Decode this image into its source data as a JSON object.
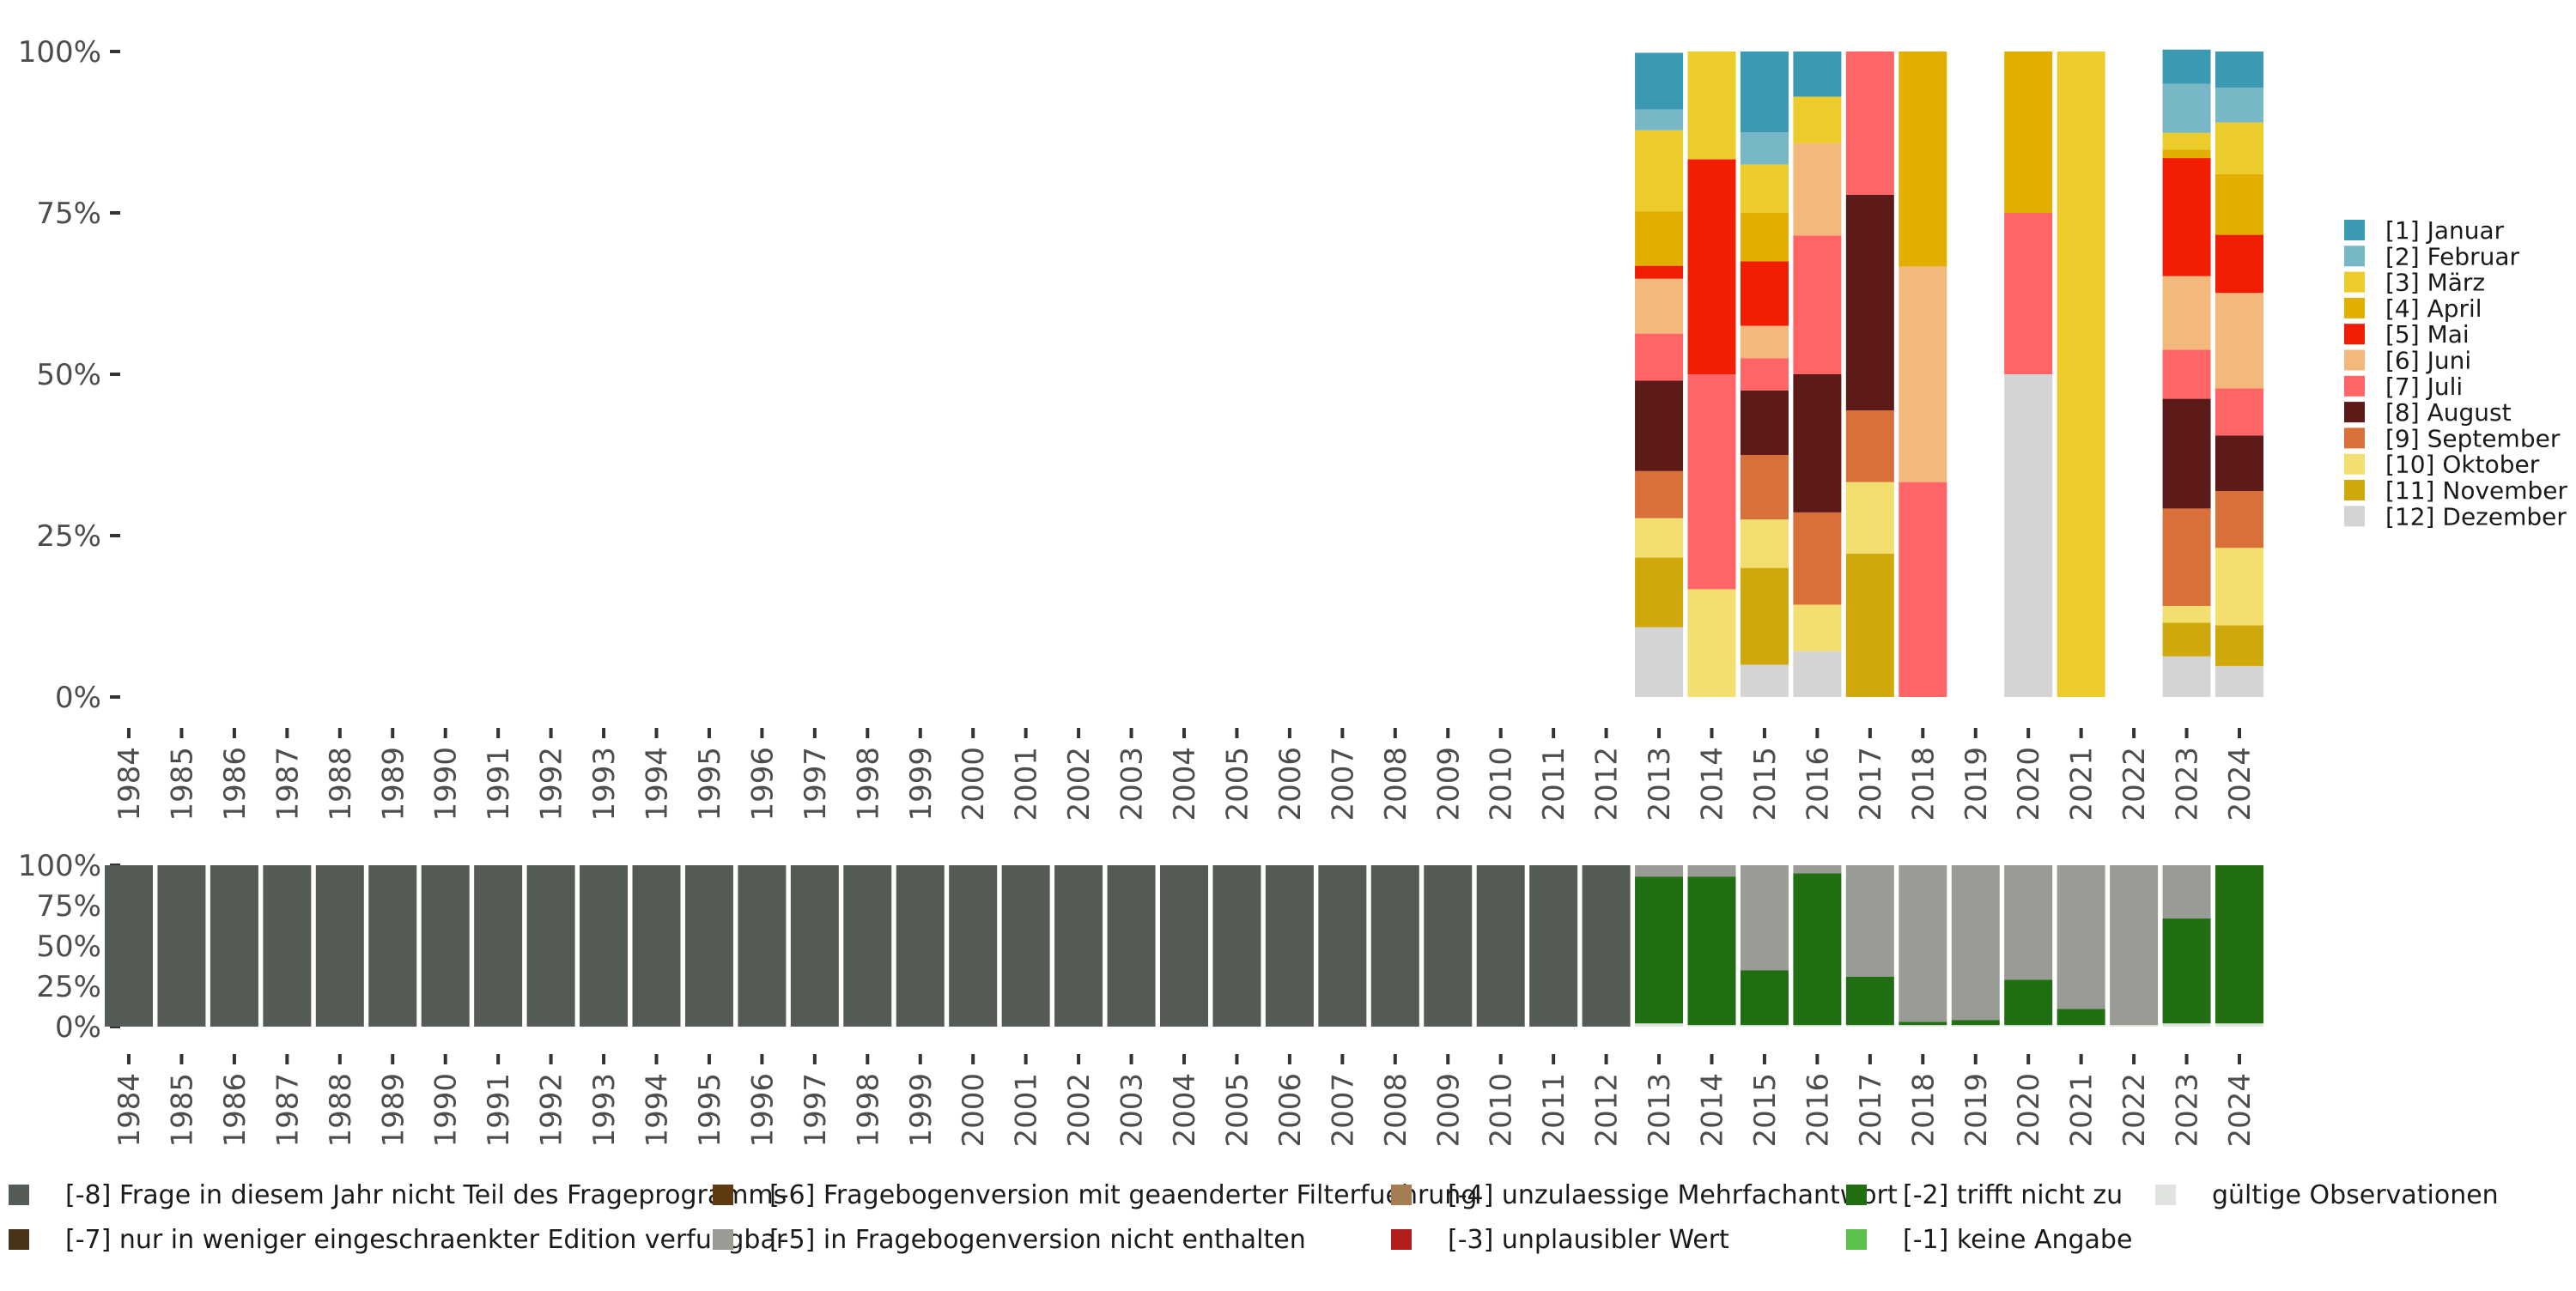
{
  "chart_data": [
    {
      "type": "bar",
      "stacked": true,
      "percent": true,
      "title": "",
      "xlabel": "",
      "ylabel": "",
      "ylim": [
        0,
        100
      ],
      "y_ticks": [
        "0%",
        "25%",
        "50%",
        "75%",
        "100%"
      ],
      "categories": [
        "1984",
        "1985",
        "1986",
        "1987",
        "1988",
        "1989",
        "1990",
        "1991",
        "1992",
        "1993",
        "1994",
        "1995",
        "1996",
        "1997",
        "1998",
        "1999",
        "2000",
        "2001",
        "2002",
        "2003",
        "2004",
        "2005",
        "2006",
        "2007",
        "2008",
        "2009",
        "2010",
        "2011",
        "2012",
        "2013",
        "2014",
        "2015",
        "2016",
        "2017",
        "2018",
        "2019",
        "2020",
        "2021",
        "2022",
        "2023",
        "2024"
      ],
      "legend_position": "right",
      "grid": false,
      "series": [
        {
          "name": "[12] Dezember",
          "color": "#d4d4d4",
          "values": [
            0,
            0,
            0,
            0,
            0,
            0,
            0,
            0,
            0,
            0,
            0,
            0,
            0,
            0,
            0,
            0,
            0,
            0,
            0,
            0,
            0,
            0,
            0,
            0,
            0,
            0,
            0,
            0,
            0,
            10.8,
            0,
            5,
            7.1,
            0,
            0,
            0,
            50,
            0,
            0,
            6.3,
            4.8
          ]
        },
        {
          "name": "[11] November",
          "color": "#cfa90b",
          "values": [
            0,
            0,
            0,
            0,
            0,
            0,
            0,
            0,
            0,
            0,
            0,
            0,
            0,
            0,
            0,
            0,
            0,
            0,
            0,
            0,
            0,
            0,
            0,
            0,
            0,
            0,
            0,
            0,
            0,
            10.8,
            0,
            15,
            0,
            22.2,
            0,
            0,
            0,
            0,
            0,
            5.2,
            6.3
          ]
        },
        {
          "name": "[10] Oktober",
          "color": "#f2df6f",
          "values": [
            0,
            0,
            0,
            0,
            0,
            0,
            0,
            0,
            0,
            0,
            0,
            0,
            0,
            0,
            0,
            0,
            0,
            0,
            0,
            0,
            0,
            0,
            0,
            0,
            0,
            0,
            0,
            0,
            0,
            6.1,
            16.7,
            7.5,
            7.2,
            11.1,
            0,
            0,
            0,
            0,
            0,
            2.6,
            12
          ]
        },
        {
          "name": "[9] September",
          "color": "#d9703a",
          "values": [
            0,
            0,
            0,
            0,
            0,
            0,
            0,
            0,
            0,
            0,
            0,
            0,
            0,
            0,
            0,
            0,
            0,
            0,
            0,
            0,
            0,
            0,
            0,
            0,
            0,
            0,
            0,
            0,
            0,
            7.3,
            0,
            10,
            14.3,
            11.1,
            0,
            0,
            0,
            0,
            0,
            15.1,
            8.8
          ]
        },
        {
          "name": "[8] August",
          "color": "#5c1a18",
          "values": [
            0,
            0,
            0,
            0,
            0,
            0,
            0,
            0,
            0,
            0,
            0,
            0,
            0,
            0,
            0,
            0,
            0,
            0,
            0,
            0,
            0,
            0,
            0,
            0,
            0,
            0,
            0,
            0,
            0,
            14,
            0,
            10,
            21.4,
            33.4,
            0,
            0,
            0,
            0,
            0,
            17,
            8.6
          ]
        },
        {
          "name": "[7] Juli",
          "color": "#ff6466",
          "values": [
            0,
            0,
            0,
            0,
            0,
            0,
            0,
            0,
            0,
            0,
            0,
            0,
            0,
            0,
            0,
            0,
            0,
            0,
            0,
            0,
            0,
            0,
            0,
            0,
            0,
            0,
            0,
            0,
            0,
            7.3,
            33.3,
            5,
            21.5,
            22.2,
            33.3,
            0,
            25,
            0,
            0,
            7.6,
            7.3
          ]
        },
        {
          "name": "[6] Juni",
          "color": "#f2b87c",
          "values": [
            0,
            0,
            0,
            0,
            0,
            0,
            0,
            0,
            0,
            0,
            0,
            0,
            0,
            0,
            0,
            0,
            0,
            0,
            0,
            0,
            0,
            0,
            0,
            0,
            0,
            0,
            0,
            0,
            0,
            8.5,
            0,
            5,
            14.3,
            0,
            33.4,
            0,
            0,
            0,
            0,
            11.4,
            14.8
          ]
        },
        {
          "name": "[5] Mai",
          "color": "#f21d05",
          "values": [
            0,
            0,
            0,
            0,
            0,
            0,
            0,
            0,
            0,
            0,
            0,
            0,
            0,
            0,
            0,
            0,
            0,
            0,
            0,
            0,
            0,
            0,
            0,
            0,
            0,
            0,
            0,
            0,
            0,
            2,
            33.3,
            10,
            0,
            0,
            0,
            0,
            0,
            0,
            0,
            18.3,
            9
          ]
        },
        {
          "name": "[4] April",
          "color": "#e2ae00",
          "values": [
            0,
            0,
            0,
            0,
            0,
            0,
            0,
            0,
            0,
            0,
            0,
            0,
            0,
            0,
            0,
            0,
            0,
            0,
            0,
            0,
            0,
            0,
            0,
            0,
            0,
            0,
            0,
            0,
            0,
            8.4,
            0,
            7.5,
            0,
            0,
            33.3,
            0,
            25,
            0,
            0,
            1.3,
            9.4
          ]
        },
        {
          "name": "[3] März",
          "color": "#ebcc2a",
          "values": [
            0,
            0,
            0,
            0,
            0,
            0,
            0,
            0,
            0,
            0,
            0,
            0,
            0,
            0,
            0,
            0,
            0,
            0,
            0,
            0,
            0,
            0,
            0,
            0,
            0,
            0,
            0,
            0,
            0,
            12.6,
            16.7,
            7.5,
            7.2,
            0,
            0,
            0,
            0,
            100,
            0,
            2.6,
            8
          ]
        },
        {
          "name": "[2] Februar",
          "color": "#78b7c5",
          "values": [
            0,
            0,
            0,
            0,
            0,
            0,
            0,
            0,
            0,
            0,
            0,
            0,
            0,
            0,
            0,
            0,
            0,
            0,
            0,
            0,
            0,
            0,
            0,
            0,
            0,
            0,
            0,
            0,
            0,
            3.2,
            0,
            5,
            0,
            0,
            0,
            0,
            0,
            0,
            0,
            7.6,
            5.4
          ]
        },
        {
          "name": "[1] Januar",
          "color": "#3b9ab2",
          "values": [
            0,
            0,
            0,
            0,
            0,
            0,
            0,
            0,
            0,
            0,
            0,
            0,
            0,
            0,
            0,
            0,
            0,
            0,
            0,
            0,
            0,
            0,
            0,
            0,
            0,
            0,
            0,
            0,
            0,
            8.8,
            0,
            12.5,
            7,
            0,
            0,
            0,
            0,
            0,
            0,
            5.3,
            5.6
          ]
        }
      ]
    },
    {
      "type": "bar",
      "stacked": true,
      "percent": true,
      "title": "",
      "xlabel": "",
      "ylabel": "",
      "ylim": [
        0,
        100
      ],
      "y_ticks": [
        "0%",
        "25%",
        "50%",
        "75%",
        "100%"
      ],
      "categories": [
        "1984",
        "1985",
        "1986",
        "1987",
        "1988",
        "1989",
        "1990",
        "1991",
        "1992",
        "1993",
        "1994",
        "1995",
        "1996",
        "1997",
        "1998",
        "1999",
        "2000",
        "2001",
        "2002",
        "2003",
        "2004",
        "2005",
        "2006",
        "2007",
        "2008",
        "2009",
        "2010",
        "2011",
        "2012",
        "2013",
        "2014",
        "2015",
        "2016",
        "2017",
        "2018",
        "2019",
        "2020",
        "2021",
        "2022",
        "2023",
        "2024"
      ],
      "legend_position": "bottom",
      "grid": false,
      "series": [
        {
          "name": "gültige Observationen",
          "color": "#dfe4df",
          "values": [
            0,
            0,
            0,
            0,
            0,
            0,
            0,
            0,
            0,
            0,
            0,
            0,
            0,
            0,
            0,
            0,
            0,
            0,
            0,
            0,
            0,
            0,
            0,
            0,
            0,
            0,
            0,
            0,
            0,
            2,
            1,
            1,
            1,
            1,
            1,
            1,
            1,
            1,
            1,
            2,
            2
          ]
        },
        {
          "name": "[-2] trifft nicht zu",
          "color": "#226e12",
          "values": [
            0,
            0,
            0,
            0,
            0,
            0,
            0,
            0,
            0,
            0,
            0,
            0,
            0,
            0,
            0,
            0,
            0,
            0,
            0,
            0,
            0,
            0,
            0,
            0,
            0,
            0,
            0,
            0,
            0,
            91,
            92,
            34,
            94,
            30,
            2,
            3,
            28,
            10,
            0,
            65,
            98
          ]
        },
        {
          "name": "[-5] in Fragebogenversion nicht enthalten",
          "color": "#999b95",
          "values": [
            0,
            0,
            0,
            0,
            0,
            0,
            0,
            0,
            0,
            0,
            0,
            0,
            0,
            0,
            0,
            0,
            0,
            0,
            0,
            0,
            0,
            0,
            0,
            0,
            0,
            0,
            0,
            0,
            0,
            7,
            7,
            65,
            5,
            69,
            97,
            96,
            71,
            89,
            99,
            33,
            0
          ]
        },
        {
          "name": "[-8] Frage in diesem Jahr nicht Teil des Frageprogramms",
          "color": "#545b55",
          "values": [
            100,
            100,
            100,
            100,
            100,
            100,
            100,
            100,
            100,
            100,
            100,
            100,
            100,
            100,
            100,
            100,
            100,
            100,
            100,
            100,
            100,
            100,
            100,
            100,
            100,
            100,
            100,
            100,
            100,
            0,
            0,
            0,
            0,
            0,
            0,
            0,
            0,
            0,
            0,
            0,
            0
          ]
        }
      ]
    }
  ],
  "legend_bottom": [
    {
      "label": "[-8] Frage in diesem Jahr nicht Teil des Frageprogramms",
      "color": "#545b55"
    },
    {
      "label": "[-7] nur in weniger eingeschraenkter Edition verfuegbar",
      "color": "#4a3418"
    },
    {
      "label": "[-6] Fragebogenversion mit geaenderter Filterfuehrung",
      "color": "#5e3a10"
    },
    {
      "label": "[-5] in Fragebogenversion nicht enthalten",
      "color": "#999b95"
    },
    {
      "label": "[-4] unzulaessige Mehrfachantwort",
      "color": "#a67c52"
    },
    {
      "label": "[-3] unplausibler Wert",
      "color": "#b21e1e"
    },
    {
      "label": "[-2] trifft nicht zu",
      "color": "#226e12"
    },
    {
      "label": "[-1] keine Angabe",
      "color": "#5cc14a"
    },
    {
      "label": "gültige Observationen",
      "color": "#dfe4df"
    }
  ]
}
